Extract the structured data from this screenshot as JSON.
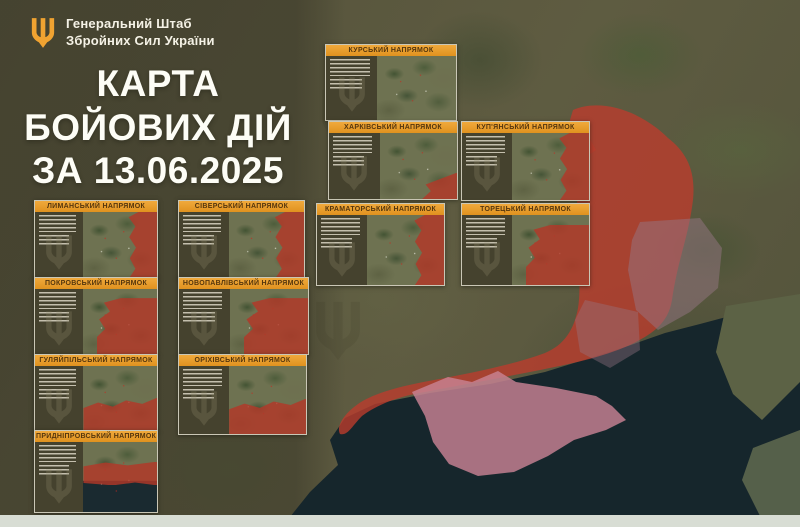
{
  "logo": {
    "line1": "Генеральний Штаб",
    "line2": "Збройних Сил України"
  },
  "title": {
    "line1": "КАРТА",
    "line2": "БОЙОВИХ ДІЙ",
    "line3": "ЗА 13.06.2025",
    "date": "13.06.2025"
  },
  "panels": [
    {
      "label": "КУРСЬКИЙ НАПРЯМОК"
    },
    {
      "label": "ХАРКІВСЬКИЙ НАПРЯМОК"
    },
    {
      "label": "КУП'ЯНСЬКИЙ НАПРЯМОК"
    },
    {
      "label": "ЛИМАНСЬКИЙ НАПРЯМОК"
    },
    {
      "label": "СІВЕРСЬКИЙ НАПРЯМОК"
    },
    {
      "label": "КРАМАТОРСЬКИЙ НАПРЯМОК"
    },
    {
      "label": "ТОРЕЦЬКИЙ НАПРЯМОК"
    },
    {
      "label": "ПОКРОВСЬКИЙ НАПРЯМОК"
    },
    {
      "label": "НОВОПАВЛІВСЬКИЙ НАПРЯМОК"
    },
    {
      "label": "ГУЛЯЙПІЛЬСЬКИЙ НАПРЯМОК"
    },
    {
      "label": "ОРІХІВСЬКИЙ НАПРЯМОК"
    },
    {
      "label": "ПРИДНІПРОВСЬКИЙ НАПРЯМОК"
    }
  ],
  "icons": {
    "logo_icon": "trident-icon",
    "watermark_icon": "trident-watermark-icon"
  },
  "colors": {
    "background_olive": "#5e5b41",
    "header_orange": "#eda032",
    "header_text": "#55360d",
    "occupied_red": "#b94434",
    "donetsk_urban_gray": "#9c8090",
    "crimea_pink": "#c9889a",
    "sea_dark": "#16262c",
    "bottom_strip": "#d8ddd4",
    "title_text": "#fdfdf6"
  }
}
